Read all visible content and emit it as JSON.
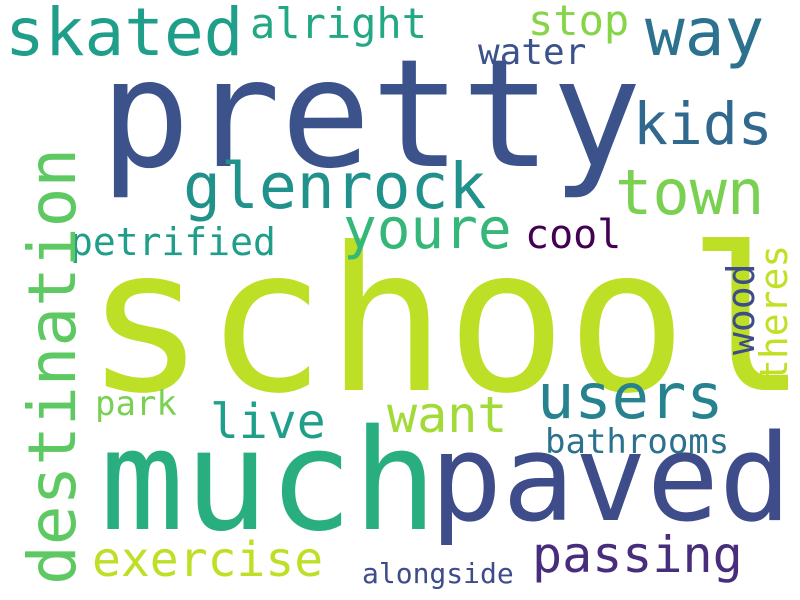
{
  "words": {
    "school": {
      "text": "school",
      "color": "#bddf26"
    },
    "pretty": {
      "text": "pretty",
      "color": "#3b528b"
    },
    "much": {
      "text": "much",
      "color": "#29af7f"
    },
    "paved": {
      "text": "paved",
      "color": "#3e4c8a"
    },
    "destination": {
      "text": "destination",
      "color": "#5ec962"
    },
    "glenrock": {
      "text": "glenrock",
      "color": "#21918c"
    },
    "skated": {
      "text": "skated",
      "color": "#1f9e89"
    },
    "way": {
      "text": "way",
      "color": "#2c728e"
    },
    "town": {
      "text": "town",
      "color": "#7ad151"
    },
    "kids": {
      "text": "kids",
      "color": "#31688e"
    },
    "users": {
      "text": "users",
      "color": "#26828e"
    },
    "youre": {
      "text": "youre",
      "color": "#35b779"
    },
    "passing": {
      "text": "passing",
      "color": "#472d7b"
    },
    "exercise": {
      "text": "exercise",
      "color": "#bddf26"
    },
    "want": {
      "text": "want",
      "color": "#a2da37"
    },
    "live": {
      "text": "live",
      "color": "#1f9e89"
    },
    "alright": {
      "text": "alright",
      "color": "#22a884"
    },
    "stop": {
      "text": "stop",
      "color": "#86d549"
    },
    "petrified": {
      "text": "petrified",
      "color": "#1f9e89"
    },
    "water": {
      "text": "water",
      "color": "#3b528b"
    },
    "cool": {
      "text": "cool",
      "color": "#440154"
    },
    "bathrooms": {
      "text": "bathrooms",
      "color": "#2c728e"
    },
    "park": {
      "text": "park",
      "color": "#7ad151"
    },
    "wood": {
      "text": "wood",
      "color": "#3e4c8a"
    },
    "theres": {
      "text": "theres",
      "color": "#c2df23"
    },
    "alongside": {
      "text": "alongside",
      "color": "#3e4c8a"
    }
  }
}
